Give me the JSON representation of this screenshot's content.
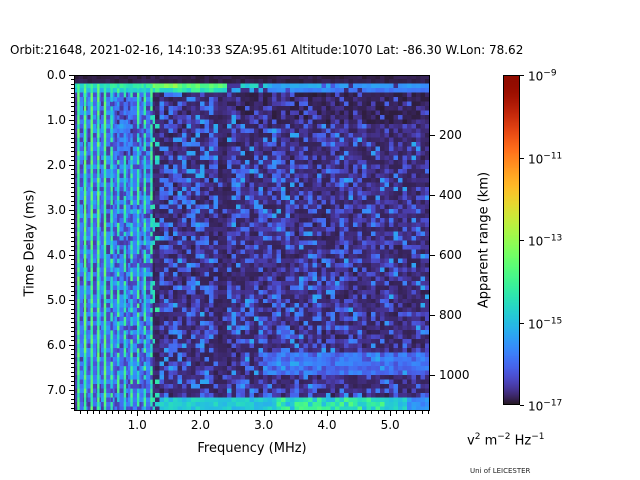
{
  "header": {
    "title": "Orbit:21648, 2021-02-16, 14:10:33 SZA:95.61 Altitude:1070 Lat: -86.30 W.Lon: 78.62"
  },
  "footer": {
    "credit": "Uni of LEICESTER"
  },
  "chart_data": {
    "type": "heatmap",
    "title": "Orbit:21648, 2021-02-16, 14:10:33 SZA:95.61 Altitude:1070 Lat: -86.30 W.Lon: 78.62",
    "xlabel": "Frequency (MHz)",
    "ylabel": "Time Delay (ms)",
    "y2label": "Apparent range (km)",
    "x_range": [
      0.0,
      5.63
    ],
    "y_range": [
      0.0,
      7.47
    ],
    "x_major": [
      {
        "value": 1.0,
        "label": "1.0"
      },
      {
        "value": 2.0,
        "label": "2.0"
      },
      {
        "value": 3.0,
        "label": "3.0"
      },
      {
        "value": 4.0,
        "label": "4.0"
      },
      {
        "value": 5.0,
        "label": "5.0"
      }
    ],
    "x_minor_step": 0.1,
    "y_major": [
      {
        "value": 0.0,
        "label": "0.0"
      },
      {
        "value": 1.0,
        "label": "1.0"
      },
      {
        "value": 2.0,
        "label": "2.0"
      },
      {
        "value": 3.0,
        "label": "3.0"
      },
      {
        "value": 4.0,
        "label": "4.0"
      },
      {
        "value": 5.0,
        "label": "5.0"
      },
      {
        "value": 6.0,
        "label": "6.0"
      },
      {
        "value": 7.0,
        "label": "7.0"
      }
    ],
    "y_minor_step": 0.1,
    "y2_ticks": [
      {
        "km": 200,
        "label": "200"
      },
      {
        "km": 400,
        "label": "400"
      },
      {
        "km": 600,
        "label": "600"
      },
      {
        "km": 800,
        "label": "800"
      },
      {
        "km": 1000,
        "label": "1000"
      }
    ],
    "km_per_ms": 150,
    "colormap": "turbo",
    "colorbar": {
      "scale": "log",
      "max_value": "1e-9",
      "min_value": "1e-17",
      "ticks": [
        {
          "frac": 0.0,
          "base": "10",
          "exp": "−9"
        },
        {
          "frac": 0.25,
          "base": "10",
          "exp": "−11"
        },
        {
          "frac": 0.5,
          "base": "10",
          "exp": "−13"
        },
        {
          "frac": 0.75,
          "base": "10",
          "exp": "−15"
        },
        {
          "frac": 1.0,
          "base": "10",
          "exp": "−17"
        }
      ],
      "units_parts": [
        {
          "b": "v",
          "e": "2"
        },
        {
          "b": "m",
          "e": "−2"
        },
        {
          "b": "Hz",
          "e": "−1"
        }
      ]
    },
    "grid": {
      "cols": 79,
      "rows": 75,
      "seed": 7
    },
    "features": {
      "noise": {
        "base": 0.02,
        "amp": 0.16,
        "right_fade": 0.5,
        "dark_frac": 0.3,
        "speck_frac": 0.2,
        "speck_slope": 0.1
      },
      "harmonics": {
        "f_start": 0.07,
        "spacing": 0.105,
        "f_max": 1.23,
        "strong_count": 5
      },
      "dark_speckle_col": {
        "f0": 1.23,
        "f1": 1.35,
        "bright_frac": 0.18
      },
      "dark_stripe": {
        "f0": 2.28,
        "f1": 2.43
      },
      "top_gap": {
        "t1": 0.16
      },
      "top_band": {
        "t1": 0.35,
        "dim_after": 0.26
      },
      "under_band_dark": {
        "f0": 2.6,
        "t0": 0.4,
        "t1": 1.1,
        "factor": 0.55
      },
      "left_dim_patch": {
        "f0": 0.6,
        "f1": 0.95,
        "t0": 0.45,
        "t1": 1.8
      },
      "right_streak": {
        "f0": 3.0,
        "t0": 6.2,
        "t1": 6.65
      },
      "bottom_band": {
        "t0": 7.18,
        "f_min": 1.35,
        "green_f0": 3.2,
        "green_f1": 4.9,
        "fade_f": 5.3
      }
    }
  }
}
